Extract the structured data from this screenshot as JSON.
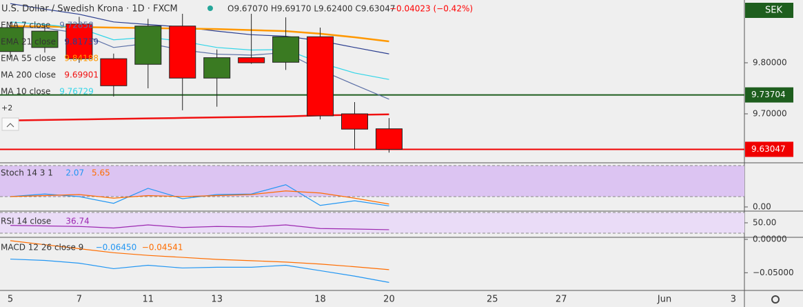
{
  "chart_data": [
    {
      "type": "candlestick",
      "title": "U.S. Dollar / Swedish Krona · 1D · FXCM",
      "ohlc_label": "O9.67070 H9.69170 L9.62400 C9.63047",
      "change_label": "−0.04023 (−0.42%)",
      "currency": "SEK",
      "categories": [
        "5",
        null,
        "7",
        null,
        "11",
        null,
        "13",
        null,
        null,
        "18",
        null,
        "20",
        null,
        null,
        "25",
        null,
        "27",
        null,
        null,
        "Jun",
        null,
        "3"
      ],
      "open": [
        9.822,
        9.83,
        9.876,
        9.808,
        9.797,
        9.872,
        9.77,
        9.81,
        9.801,
        9.851,
        9.7,
        9.6707,
        null,
        null,
        null,
        null,
        null,
        null,
        null,
        null,
        null,
        null
      ],
      "high": [
        9.88,
        9.875,
        9.89,
        9.818,
        9.886,
        9.896,
        9.826,
        9.896,
        9.889,
        9.869,
        9.723,
        9.6917,
        null,
        null,
        null,
        null,
        null,
        null,
        null,
        null,
        null,
        null
      ],
      "low": [
        9.81,
        9.82,
        9.8,
        9.734,
        9.75,
        9.707,
        9.714,
        9.798,
        9.786,
        9.689,
        9.631,
        9.624,
        null,
        null,
        null,
        null,
        null,
        null,
        null,
        null,
        null,
        null
      ],
      "close": [
        9.869,
        9.862,
        9.808,
        9.755,
        9.872,
        9.77,
        9.81,
        9.8,
        9.851,
        9.696,
        9.67,
        9.63047,
        null,
        null,
        null,
        null,
        null,
        null,
        null,
        null,
        null,
        null
      ],
      "up_color": "#3a7a22",
      "down_color": "#ff0000",
      "overlays": [
        {
          "name": "EMA 7 close",
          "color": "#5b6fa6",
          "value_label": "9.72858",
          "values": [
            9.87,
            9.868,
            9.858,
            9.83,
            9.838,
            9.825,
            9.817,
            9.815,
            9.82,
            9.786,
            9.757,
            9.72858
          ]
        },
        {
          "name": "EMA 21 close",
          "color": "#2a3d8f",
          "value_label": "9.81739",
          "values": [
            9.916,
            9.905,
            9.895,
            9.88,
            9.875,
            9.87,
            9.862,
            9.855,
            9.852,
            9.843,
            9.83,
            9.81739
          ]
        },
        {
          "name": "EMA 55 close",
          "color": "#ff9800",
          "value_label": "9.84188",
          "values": [
            9.872,
            9.871,
            9.87,
            9.869,
            9.868,
            9.867,
            9.866,
            9.864,
            9.862,
            9.857,
            9.85,
            9.84188
          ]
        },
        {
          "name": "MA 200 close",
          "color": "#f01010",
          "value_label": "9.69901",
          "values": [
            9.687,
            9.688,
            9.689,
            9.69,
            9.691,
            9.692,
            9.693,
            9.694,
            9.695,
            9.697,
            9.698,
            9.69901
          ]
        },
        {
          "name": "MA 10 close",
          "color": "#30d5e8",
          "value_label": "9.76729",
          "values": [
            9.88,
            9.875,
            9.868,
            9.845,
            9.85,
            9.842,
            9.83,
            9.825,
            9.826,
            9.8,
            9.78,
            9.76729
          ]
        }
      ],
      "hidden_label": "+2",
      "ylim": [
        9.6054,
        9.923
      ],
      "yticks": [
        {
          "value": 9.7,
          "label": "9.70000"
        },
        {
          "value": 9.8,
          "label": "9.80000"
        }
      ],
      "price_lines": [
        {
          "value": 9.73704,
          "label": "9.73704",
          "color": "#1e5e1e"
        },
        {
          "value": 9.63047,
          "label": "9.63047",
          "color": "#f00000"
        }
      ]
    },
    {
      "type": "line",
      "title": "Stoch 14 3 1",
      "ylim": [
        -6.7,
        84
      ],
      "yticks": [
        {
          "value": 0,
          "label": "0.00"
        }
      ],
      "levels": [
        20,
        80
      ],
      "level_fill": "#dcc4f2",
      "series": [
        {
          "color": "#2196f3",
          "value_label": "2.07",
          "values": [
            20,
            25,
            20,
            7,
            36,
            16,
            24,
            25,
            43,
            3,
            12,
            2.07
          ]
        },
        {
          "color": "#ff6d00",
          "value_label": "5.65",
          "values": [
            20,
            22,
            24,
            17,
            22,
            20,
            22,
            24,
            31,
            27,
            17,
            5.65
          ]
        }
      ]
    },
    {
      "type": "line",
      "title": "RSI 14 close",
      "ylim": [
        23.3,
        71.3
      ],
      "yticks": [
        {
          "value": 50,
          "label": "50.00"
        }
      ],
      "levels": [
        30,
        70
      ],
      "level_fill": "#eadcf7",
      "series": [
        {
          "color": "#9c27b0",
          "value_label": "36.74",
          "values": [
            45,
            44,
            43,
            40,
            46,
            41,
            43,
            42,
            46,
            39,
            38,
            36.74
          ]
        }
      ]
    },
    {
      "type": "line",
      "title": "MACD 12 26 close 9",
      "ylim": [
        -0.0755,
        0.002
      ],
      "yticks": [
        {
          "value": 0,
          "label": "0.00000"
        },
        {
          "value": -0.05,
          "label": "−0.05000"
        }
      ],
      "series": [
        {
          "color": "#2196f3",
          "value_label": "−0.06450",
          "values": [
            -0.0296,
            -0.0316,
            -0.0357,
            -0.0439,
            -0.0388,
            -0.0429,
            -0.0418,
            -0.0418,
            -0.0388,
            -0.0469,
            -0.0551,
            -0.0645
          ]
        },
        {
          "color": "#ff6d00",
          "value_label": "−0.04541",
          "values": [
            -0.002,
            -0.008,
            -0.014,
            -0.02,
            -0.024,
            -0.027,
            -0.03,
            -0.032,
            -0.034,
            -0.037,
            -0.041,
            -0.04541
          ]
        }
      ]
    }
  ]
}
